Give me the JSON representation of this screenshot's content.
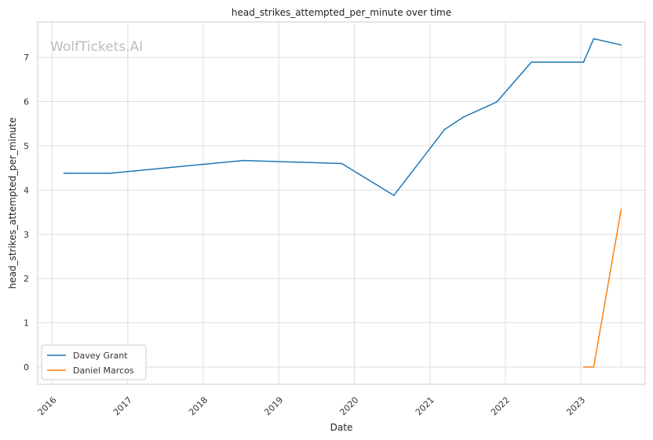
{
  "chart_data": {
    "type": "line",
    "title": "head_strikes_attempted_per_minute over time",
    "xlabel": "Date",
    "ylabel": "head_strikes_attempted_per_minute",
    "watermark": "WolfTickets.AI",
    "x_ticks": [
      "2016",
      "2017",
      "2018",
      "2019",
      "2020",
      "2021",
      "2022",
      "2023"
    ],
    "y_ticks": [
      "0",
      "1",
      "2",
      "3",
      "4",
      "5",
      "6",
      "7"
    ],
    "xlim": [
      "2015-10-23",
      "2023-11-08"
    ],
    "ylim": [
      -0.39,
      7.8
    ],
    "grid": true,
    "legend_position": "lower-left",
    "series": [
      {
        "name": "Davey Grant",
        "color": "#1f77b4",
        "points": [
          {
            "date": "2016-02-27",
            "value": 4.38
          },
          {
            "date": "2016-10-08",
            "value": 4.38
          },
          {
            "date": "2018-07-14",
            "value": 4.67
          },
          {
            "date": "2019-11-02",
            "value": 4.6
          },
          {
            "date": "2020-07-11",
            "value": 3.88
          },
          {
            "date": "2021-03-13",
            "value": 5.37
          },
          {
            "date": "2021-06-12",
            "value": 5.65
          },
          {
            "date": "2021-11-20",
            "value": 5.99
          },
          {
            "date": "2022-05-07",
            "value": 6.89
          },
          {
            "date": "2023-01-14",
            "value": 6.89
          },
          {
            "date": "2023-03-04",
            "value": 7.42
          },
          {
            "date": "2023-07-15",
            "value": 7.28
          }
        ]
      },
      {
        "name": "Daniel Marcos",
        "color": "#ff7f0e",
        "points": [
          {
            "date": "2023-01-14",
            "value": 0.0
          },
          {
            "date": "2023-03-04",
            "value": 0.0
          },
          {
            "date": "2023-07-15",
            "value": 3.56
          }
        ]
      }
    ]
  }
}
